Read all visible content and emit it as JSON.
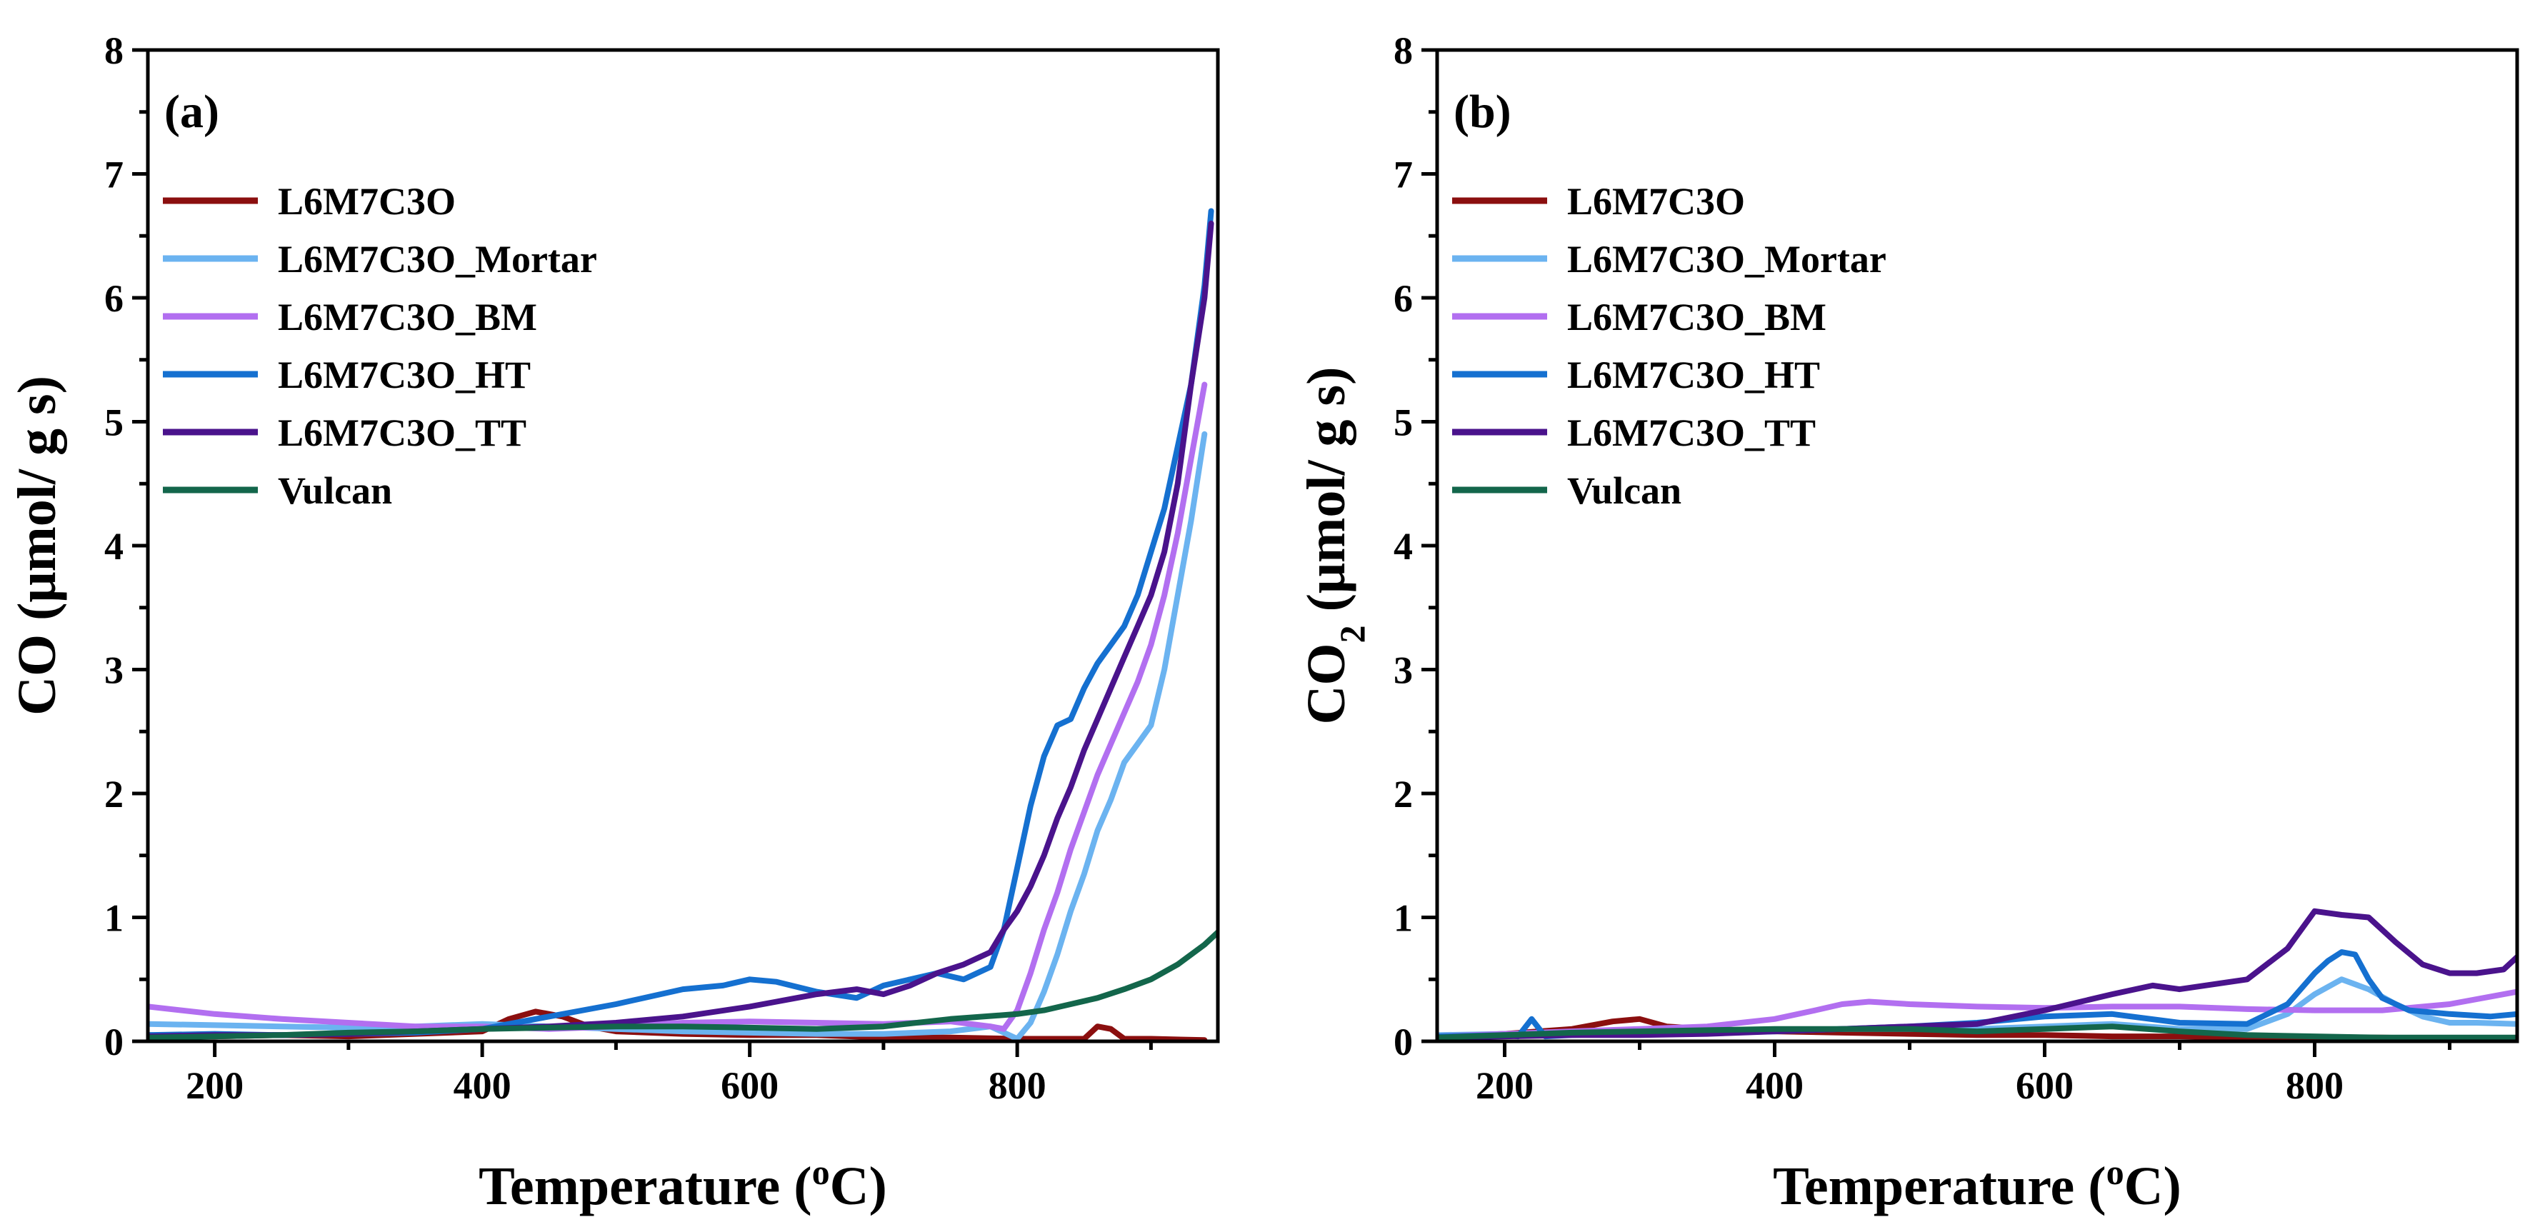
{
  "figure": {
    "panels": [
      "(a)",
      "(b)"
    ]
  },
  "chart_data": [
    {
      "type": "line",
      "panel_label": "(a)",
      "xlabel": "Temperature (oC)",
      "ylabel": "CO (μmol/ g s)",
      "xlim": [
        150,
        950
      ],
      "ylim": [
        0,
        8
      ],
      "xticks": [
        200,
        400,
        600,
        800
      ],
      "yticks": [
        0,
        1,
        2,
        3,
        4,
        5,
        6,
        7,
        8
      ],
      "legend_position": "top-left",
      "series": [
        {
          "name": "L6M7C3O",
          "color": "#8b0f0f",
          "x": [
            150,
            200,
            250,
            300,
            350,
            400,
            420,
            440,
            460,
            480,
            500,
            550,
            600,
            650,
            700,
            750,
            800,
            850,
            860,
            870,
            880,
            890,
            900,
            940
          ],
          "y": [
            0.05,
            0.04,
            0.05,
            0.04,
            0.06,
            0.08,
            0.18,
            0.24,
            0.2,
            0.12,
            0.08,
            0.06,
            0.05,
            0.05,
            0.03,
            0.03,
            0.02,
            0.02,
            0.12,
            0.1,
            0.02,
            0.02,
            0.02,
            0.01
          ]
        },
        {
          "name": "L6M7C3O_Mortar",
          "color": "#6bb3f0",
          "x": [
            150,
            200,
            250,
            300,
            350,
            400,
            450,
            500,
            550,
            600,
            650,
            700,
            750,
            780,
            800,
            810,
            820,
            830,
            840,
            850,
            860,
            870,
            880,
            890,
            900,
            910,
            920,
            930,
            940
          ],
          "y": [
            0.14,
            0.13,
            0.12,
            0.11,
            0.12,
            0.14,
            0.12,
            0.1,
            0.08,
            0.07,
            0.06,
            0.06,
            0.08,
            0.12,
            0.02,
            0.15,
            0.4,
            0.7,
            1.05,
            1.35,
            1.7,
            1.95,
            2.25,
            2.4,
            2.55,
            3.0,
            3.6,
            4.2,
            4.9
          ]
        },
        {
          "name": "L6M7C3O_BM",
          "color": "#b26ff0",
          "x": [
            150,
            200,
            250,
            300,
            350,
            400,
            450,
            500,
            550,
            600,
            650,
            700,
            750,
            780,
            790,
            800,
            810,
            820,
            830,
            840,
            850,
            860,
            870,
            880,
            890,
            900,
            910,
            920,
            930,
            940
          ],
          "y": [
            0.28,
            0.22,
            0.18,
            0.15,
            0.12,
            0.12,
            0.1,
            0.12,
            0.15,
            0.16,
            0.15,
            0.14,
            0.16,
            0.12,
            0.1,
            0.25,
            0.55,
            0.9,
            1.2,
            1.55,
            1.85,
            2.15,
            2.4,
            2.65,
            2.9,
            3.2,
            3.6,
            4.1,
            4.7,
            5.3
          ]
        },
        {
          "name": "L6M7C3O_HT",
          "color": "#1570d0",
          "x": [
            150,
            200,
            250,
            300,
            350,
            400,
            450,
            500,
            550,
            580,
            600,
            620,
            650,
            680,
            700,
            720,
            740,
            760,
            780,
            790,
            800,
            810,
            820,
            830,
            840,
            850,
            860,
            870,
            880,
            890,
            900,
            910,
            920,
            930,
            940,
            945
          ],
          "y": [
            0.05,
            0.06,
            0.05,
            0.06,
            0.07,
            0.1,
            0.2,
            0.3,
            0.42,
            0.45,
            0.5,
            0.48,
            0.4,
            0.35,
            0.45,
            0.5,
            0.55,
            0.5,
            0.6,
            0.9,
            1.4,
            1.9,
            2.3,
            2.55,
            2.6,
            2.85,
            3.05,
            3.2,
            3.35,
            3.6,
            3.95,
            4.3,
            4.8,
            5.3,
            6.1,
            6.7
          ]
        },
        {
          "name": "L6M7C3O_TT",
          "color": "#4a138c",
          "x": [
            150,
            200,
            250,
            300,
            350,
            400,
            450,
            500,
            550,
            600,
            620,
            650,
            680,
            700,
            720,
            740,
            760,
            780,
            790,
            800,
            810,
            820,
            830,
            840,
            850,
            860,
            870,
            880,
            890,
            900,
            910,
            920,
            930,
            940,
            945
          ],
          "y": [
            0.04,
            0.05,
            0.05,
            0.06,
            0.08,
            0.1,
            0.12,
            0.15,
            0.2,
            0.28,
            0.32,
            0.38,
            0.42,
            0.38,
            0.45,
            0.55,
            0.62,
            0.72,
            0.9,
            1.05,
            1.25,
            1.5,
            1.8,
            2.05,
            2.35,
            2.6,
            2.85,
            3.1,
            3.35,
            3.6,
            3.95,
            4.5,
            5.3,
            6.0,
            6.6
          ]
        },
        {
          "name": "Vulcan",
          "color": "#13664b",
          "x": [
            150,
            200,
            250,
            300,
            350,
            400,
            450,
            500,
            550,
            600,
            650,
            700,
            750,
            800,
            820,
            840,
            860,
            880,
            900,
            920,
            940,
            950
          ],
          "y": [
            0.03,
            0.04,
            0.05,
            0.07,
            0.08,
            0.1,
            0.11,
            0.12,
            0.12,
            0.11,
            0.1,
            0.12,
            0.18,
            0.22,
            0.25,
            0.3,
            0.35,
            0.42,
            0.5,
            0.62,
            0.78,
            0.88
          ]
        }
      ]
    },
    {
      "type": "line",
      "panel_label": "(b)",
      "xlabel": "Temperature (oC)",
      "ylabel": "CO2 (μmol/ g s)",
      "xlim": [
        150,
        950
      ],
      "ylim": [
        0,
        8
      ],
      "xticks": [
        200,
        400,
        600,
        800
      ],
      "yticks": [
        0,
        1,
        2,
        3,
        4,
        5,
        6,
        7,
        8
      ],
      "legend_position": "top-left",
      "series": [
        {
          "name": "L6M7C3O",
          "color": "#8b0f0f",
          "x": [
            150,
            200,
            250,
            280,
            300,
            320,
            350,
            400,
            450,
            500,
            550,
            600,
            650,
            700,
            750,
            800,
            850,
            900,
            950
          ],
          "y": [
            0.04,
            0.06,
            0.1,
            0.16,
            0.18,
            0.12,
            0.1,
            0.08,
            0.07,
            0.06,
            0.05,
            0.05,
            0.04,
            0.04,
            0.03,
            0.03,
            0.03,
            0.02,
            0.02
          ]
        },
        {
          "name": "L6M7C3O_Mortar",
          "color": "#6bb3f0",
          "x": [
            150,
            200,
            250,
            300,
            350,
            400,
            450,
            500,
            550,
            600,
            650,
            700,
            750,
            780,
            800,
            820,
            840,
            860,
            880,
            900,
            920,
            950
          ],
          "y": [
            0.05,
            0.06,
            0.06,
            0.07,
            0.08,
            0.09,
            0.1,
            0.1,
            0.1,
            0.12,
            0.14,
            0.1,
            0.1,
            0.22,
            0.38,
            0.5,
            0.42,
            0.3,
            0.2,
            0.15,
            0.15,
            0.14
          ]
        },
        {
          "name": "L6M7C3O_BM",
          "color": "#b26ff0",
          "x": [
            150,
            200,
            250,
            300,
            350,
            400,
            430,
            450,
            470,
            500,
            550,
            600,
            650,
            700,
            750,
            800,
            850,
            900,
            950
          ],
          "y": [
            0.04,
            0.06,
            0.08,
            0.1,
            0.12,
            0.18,
            0.25,
            0.3,
            0.32,
            0.3,
            0.28,
            0.27,
            0.28,
            0.28,
            0.26,
            0.25,
            0.25,
            0.3,
            0.4
          ]
        },
        {
          "name": "L6M7C3O_HT",
          "color": "#1570d0",
          "x": [
            150,
            200,
            210,
            220,
            230,
            250,
            300,
            350,
            400,
            450,
            500,
            550,
            600,
            650,
            700,
            750,
            780,
            800,
            810,
            820,
            830,
            840,
            850,
            870,
            900,
            930,
            950
          ],
          "y": [
            0.04,
            0.05,
            0.04,
            0.18,
            0.04,
            0.05,
            0.06,
            0.07,
            0.08,
            0.1,
            0.12,
            0.15,
            0.2,
            0.22,
            0.15,
            0.14,
            0.3,
            0.55,
            0.65,
            0.72,
            0.7,
            0.5,
            0.35,
            0.25,
            0.22,
            0.2,
            0.22
          ]
        },
        {
          "name": "L6M7C3O_TT",
          "color": "#4a138c",
          "x": [
            150,
            200,
            250,
            300,
            350,
            400,
            450,
            500,
            550,
            600,
            650,
            680,
            700,
            750,
            780,
            800,
            820,
            840,
            860,
            880,
            900,
            920,
            940,
            950
          ],
          "y": [
            0.03,
            0.04,
            0.05,
            0.05,
            0.06,
            0.08,
            0.1,
            0.12,
            0.14,
            0.25,
            0.38,
            0.45,
            0.42,
            0.5,
            0.75,
            1.05,
            1.02,
            1.0,
            0.8,
            0.62,
            0.55,
            0.55,
            0.58,
            0.68
          ]
        },
        {
          "name": "Vulcan",
          "color": "#13664b",
          "x": [
            150,
            200,
            250,
            300,
            350,
            400,
            450,
            500,
            550,
            600,
            650,
            700,
            750,
            800,
            850,
            900,
            950
          ],
          "y": [
            0.03,
            0.05,
            0.07,
            0.08,
            0.09,
            0.1,
            0.1,
            0.1,
            0.08,
            0.1,
            0.12,
            0.08,
            0.05,
            0.04,
            0.03,
            0.03,
            0.03
          ]
        }
      ]
    }
  ]
}
